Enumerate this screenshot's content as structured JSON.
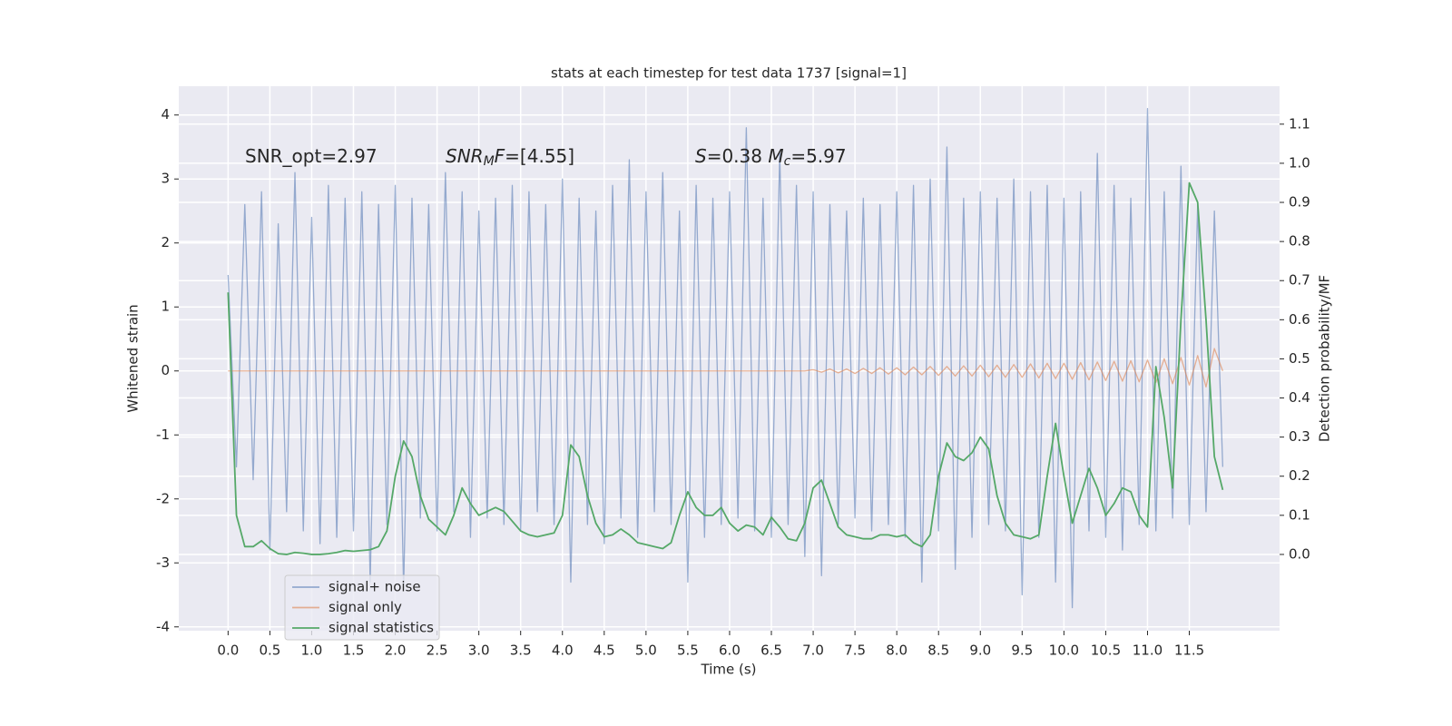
{
  "chart_data": {
    "type": "line",
    "title": "stats at each timestep for test data 1737 [signal=1]",
    "xlabel": "Time (s)",
    "ylabel": "Whitened strain",
    "y2label": "Detection probability/MF",
    "grid": true,
    "legend": "lower left",
    "xlim": [
      -0.59,
      12.58
    ],
    "ylim": [
      -4.06,
      4.45
    ],
    "y2lim": [
      -0.195,
      1.197
    ],
    "xticks": [
      {
        "value": 0,
        "label": "0.0"
      },
      0.5,
      {
        "value": 1,
        "label": "1.0"
      },
      1.5,
      {
        "value": 2,
        "label": "2.0"
      },
      2.5,
      {
        "value": 3,
        "label": "3.0"
      },
      3.5,
      {
        "value": 4,
        "label": "4.0"
      },
      4.5,
      {
        "value": 5,
        "label": "5.0"
      },
      5.5,
      {
        "value": 6,
        "label": "6.0"
      },
      6.5,
      {
        "value": 7,
        "label": "7.0"
      },
      7.5,
      {
        "value": 8,
        "label": "8.0"
      },
      8.5,
      {
        "value": 9,
        "label": "9.0"
      },
      9.5,
      {
        "value": 10,
        "label": "10.0"
      },
      10.5,
      {
        "value": 11,
        "label": "11.0"
      },
      11.5
    ],
    "yticks": [
      -4,
      -3,
      -2,
      -1,
      0,
      1,
      2,
      3,
      4
    ],
    "y2ticks": [
      {
        "value": 0,
        "label": "0.0"
      },
      0.1,
      0.2,
      0.3,
      0.4,
      0.5,
      0.6,
      0.7,
      0.8,
      0.9,
      {
        "value": 1,
        "label": "1.0"
      },
      1.1
    ],
    "annotations": [
      [
        {
          "text": "SNR_opt=2.97"
        }
      ],
      [
        {
          "text": "SNR",
          "italic": true
        },
        {
          "text": "M",
          "italic": true,
          "sub": true
        },
        {
          "text": "F",
          "italic": true
        },
        {
          "text": "=[4.55]"
        }
      ],
      [
        {
          "text": "S",
          "italic": true
        },
        {
          "text": "=0.38   "
        },
        {
          "text": "M",
          "italic": true
        },
        {
          "text": "c",
          "italic": true,
          "sub": true
        },
        {
          "text": "=5.97"
        }
      ]
    ],
    "x": [
      0,
      0.1,
      0.2,
      0.3,
      0.4,
      0.5,
      0.6,
      0.7,
      0.8,
      0.9,
      1,
      1.1,
      1.2,
      1.3,
      1.4,
      1.5,
      1.6,
      1.7,
      1.8,
      1.9,
      2,
      2.1,
      2.2,
      2.3,
      2.4,
      2.5,
      2.6,
      2.7,
      2.8,
      2.9,
      3,
      3.1,
      3.2,
      3.3,
      3.4,
      3.5,
      3.6,
      3.7,
      3.8,
      3.9,
      4,
      4.1,
      4.2,
      4.3,
      4.4,
      4.5,
      4.6,
      4.7,
      4.8,
      4.9,
      5,
      5.1,
      5.2,
      5.3,
      5.4,
      5.5,
      5.6,
      5.7,
      5.8,
      5.9,
      6,
      6.1,
      6.2,
      6.3,
      6.4,
      6.5,
      6.6,
      6.7,
      6.8,
      6.9,
      7,
      7.1,
      7.2,
      7.3,
      7.4,
      7.5,
      7.6,
      7.7,
      7.8,
      7.9,
      8,
      8.1,
      8.2,
      8.3,
      8.4,
      8.5,
      8.6,
      8.7,
      8.8,
      8.9,
      9,
      9.1,
      9.2,
      9.3,
      9.4,
      9.5,
      9.6,
      9.7,
      9.8,
      9.9,
      10,
      10.1,
      10.2,
      10.3,
      10.4,
      10.5,
      10.6,
      10.7,
      10.8,
      10.9,
      11,
      11.1,
      11.2,
      11.3,
      11.4,
      11.5,
      11.6,
      11.7,
      11.8,
      11.9
    ],
    "series": [
      {
        "name": "signal+ noise",
        "color": "#4c72b0",
        "values": [
          1.5,
          -1.5,
          2.6,
          -1.7,
          2.8,
          -2.8,
          2.3,
          -2.2,
          3.1,
          -2.5,
          2.4,
          -2.7,
          2.9,
          -2.6,
          2.7,
          -2.5,
          2.8,
          -3.3,
          2.6,
          -2.4,
          2.9,
          -3.4,
          2.7,
          -2.3,
          2.6,
          -2.5,
          3.1,
          -2.2,
          2.8,
          -2.6,
          2.5,
          -2.3,
          2.7,
          -2.4,
          2.9,
          -2.5,
          2.8,
          -2.2,
          2.6,
          -2.4,
          3.0,
          -3.3,
          2.7,
          -2.4,
          2.5,
          -2.7,
          2.9,
          -2.3,
          3.3,
          -2.6,
          2.8,
          -2.2,
          3.1,
          -2.4,
          2.5,
          -3.3,
          2.9,
          -2.6,
          2.7,
          -2.4,
          2.8,
          -2.3,
          3.8,
          -2.5,
          2.7,
          -2.6,
          3.4,
          -2.4,
          2.9,
          -2.9,
          2.8,
          -3.2,
          2.6,
          -2.4,
          2.5,
          -2.3,
          2.7,
          -2.5,
          2.6,
          -2.4,
          2.8,
          -2.6,
          2.9,
          -3.3,
          3.0,
          -2.5,
          3.5,
          -3.1,
          2.7,
          -2.6,
          2.8,
          -2.4,
          2.7,
          -2.5,
          3.0,
          -3.5,
          2.8,
          -2.6,
          2.9,
          -3.3,
          2.7,
          -3.7,
          2.8,
          -2.5,
          3.4,
          -2.6,
          2.9,
          -2.8,
          2.7,
          -2.4,
          4.1,
          -2.5,
          2.8,
          -2.3,
          3.2,
          -2.4,
          2.6,
          -2.2,
          2.5,
          -1.5
        ]
      },
      {
        "name": "signal only",
        "color": "#dd8452",
        "values": [
          0,
          0,
          0,
          0,
          0,
          0,
          0,
          0,
          0,
          0,
          0,
          0,
          0,
          0,
          0,
          0,
          0,
          0,
          0,
          0,
          0,
          0,
          0,
          0,
          0,
          0,
          0,
          0,
          0,
          0,
          0,
          0,
          0,
          0,
          0,
          0,
          0,
          0,
          0,
          0,
          0,
          0,
          0,
          0,
          0,
          0,
          0,
          0,
          0,
          0,
          0,
          0,
          0,
          0,
          0,
          0,
          0,
          0,
          0,
          0,
          0,
          0,
          0,
          0,
          0,
          0,
          0,
          0,
          0,
          0,
          0.02,
          -0.02,
          0.03,
          -0.03,
          0.03,
          -0.04,
          0.04,
          -0.04,
          0.05,
          -0.05,
          0.05,
          -0.06,
          0.06,
          -0.06,
          0.07,
          -0.07,
          0.07,
          -0.08,
          0.08,
          -0.08,
          0.09,
          -0.09,
          0.09,
          -0.1,
          0.1,
          -0.1,
          0.11,
          -0.11,
          0.12,
          -0.12,
          0.12,
          -0.13,
          0.13,
          -0.14,
          0.14,
          -0.15,
          0.15,
          -0.16,
          0.16,
          -0.17,
          0.17,
          -0.18,
          0.19,
          -0.2,
          0.21,
          -0.22,
          0.24,
          -0.25,
          0.35,
          0
        ]
      },
      {
        "name": "signal statistics",
        "color": "#55a868",
        "axis": "y2",
        "values": [
          0.67,
          0.1,
          0.02,
          0.02,
          0.035,
          0.015,
          0.002,
          0,
          0.005,
          0.003,
          0,
          0,
          0.002,
          0.005,
          0.01,
          0.008,
          0.01,
          0.012,
          0.02,
          0.06,
          0.2,
          0.29,
          0.25,
          0.15,
          0.09,
          0.07,
          0.05,
          0.1,
          0.17,
          0.13,
          0.1,
          0.11,
          0.12,
          0.11,
          0.085,
          0.06,
          0.05,
          0.045,
          0.05,
          0.055,
          0.1,
          0.28,
          0.25,
          0.15,
          0.08,
          0.045,
          0.05,
          0.065,
          0.05,
          0.03,
          0.025,
          0.02,
          0.015,
          0.03,
          0.1,
          0.16,
          0.12,
          0.1,
          0.1,
          0.12,
          0.08,
          0.06,
          0.075,
          0.07,
          0.05,
          0.095,
          0.07,
          0.04,
          0.035,
          0.08,
          0.17,
          0.19,
          0.13,
          0.07,
          0.05,
          0.045,
          0.04,
          0.04,
          0.05,
          0.05,
          0.045,
          0.05,
          0.03,
          0.02,
          0.05,
          0.2,
          0.285,
          0.25,
          0.24,
          0.26,
          0.3,
          0.27,
          0.15,
          0.08,
          0.05,
          0.045,
          0.04,
          0.05,
          0.2,
          0.335,
          0.2,
          0.08,
          0.15,
          0.22,
          0.17,
          0.1,
          0.13,
          0.17,
          0.16,
          0.1,
          0.07,
          0.48,
          0.35,
          0.17,
          0.6,
          0.95,
          0.9,
          0.6,
          0.25,
          0.165
        ]
      }
    ]
  }
}
